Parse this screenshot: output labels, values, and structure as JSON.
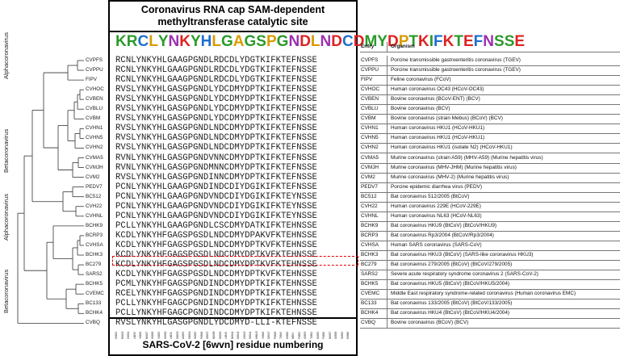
{
  "title": "Coronavirus RNA cap SAM-dependent methyltransferase catalytic site",
  "footer": "SARS-CoV-2 [6wvn] residue numbering",
  "logo": {
    "letters": [
      "K",
      "R",
      "C",
      "L",
      "Y",
      "N",
      "K",
      "Y",
      "H",
      "L",
      "G",
      "A",
      "G",
      "S",
      "P",
      "G",
      "N",
      "D",
      "L",
      "N",
      "D",
      "C",
      "D",
      "M",
      "Y",
      "D",
      "P",
      "T",
      "K",
      "I",
      "F",
      "K",
      "T",
      "E",
      "F",
      "N",
      "S",
      "S",
      "E"
    ],
    "colors": [
      "#2b9a2b",
      "#2b9a2b",
      "#1e6fd0",
      "#d99b00",
      "#2b9a2b",
      "#9b2fb0",
      "#d22",
      "#2b9a2b",
      "#1e6fd0",
      "#d99b00",
      "#2b9a2b",
      "#d99b00",
      "#2b9a2b",
      "#2b9a2b",
      "#d99b00",
      "#2b9a2b",
      "#9b2fb0",
      "#d22",
      "#d99b00",
      "#9b2fb0",
      "#d22",
      "#1e6fd0",
      "#d22",
      "#2b9a2b",
      "#2b9a2b",
      "#d22",
      "#d99b00",
      "#2b9a2b",
      "#d22",
      "#2b9a2b",
      "#1e6fd0",
      "#d22",
      "#2b9a2b",
      "#d22",
      "#1e6fd0",
      "#9b2fb0",
      "#2b9a2b",
      "#2b9a2b",
      "#d22"
    ]
  },
  "clades": [
    {
      "label": "Alphacoronavirus"
    },
    {
      "label": "Betacoronavirus"
    },
    {
      "label": "Alphacoronavirus"
    },
    {
      "label": "Betacoronavirus"
    }
  ],
  "entries_header": {
    "entry": "Entry",
    "organism": "Organism"
  },
  "rows": [
    {
      "leaf": "CVPFS",
      "seq": "RCNLYNKYHLGAAGPGNDLRDCDLYDGTKIFKTEFNSSE",
      "entry": "CVPFS",
      "organism": "Porcine transmissible gastroenteritis coronavirus  (TGEV)"
    },
    {
      "leaf": "CVPPU",
      "seq": "RCNLYNKYHLGAAGPGNDLRDCDLYDGTKIFKTEFNSSE",
      "entry": "CVPPU",
      "organism": "Porcine transmissible gastroenteritis coronavirus (TGEV)"
    },
    {
      "leaf": "FIPV",
      "seq": "RCNLYNKYHLGAAGPGNDLRDCDLYDGTKIFKTEFNSSE",
      "entry": "FIPV",
      "organism": "Feline coronavirus  (FCoV)"
    },
    {
      "leaf": "CVHOC",
      "seq": "RVSLYNKYHLGASGPGNDLYDCDMYDPTKIFKTEFNSSE",
      "entry": "CVHOC",
      "organism": "Human coronavirus OC43 (HCoV-OC43)"
    },
    {
      "leaf": "CVBEN",
      "seq": "RVSLYNKYHLGASGPGNDLYDCDMYDPTKIFKTEFNSSE",
      "entry": "CVBEN",
      "organism": "Bovine coronavirus (BCoV-ENT) (BCV)"
    },
    {
      "leaf": "CVBLU",
      "seq": "RVSLYNKYHLGASGPGNDLYDCDMYDPTKIFKTEFNSSE",
      "entry": "CVBLU",
      "organism": "Bovine coronavirus (BCV)"
    },
    {
      "leaf": "CVBM",
      "seq": "RVSLYNKYHLGASGPGNDLYDCDMYDPTKIFKTEFNSSE",
      "entry": "CVBM",
      "organism": "Bovine coronavirus (strain Mebus) (BCoV) (BCV)"
    },
    {
      "leaf": "CVHN1",
      "seq": "RVSLYNKYHLGASGPGNDLNDCDMYDPTKIFKTEFNSSE",
      "entry": "CVHN1",
      "organism": "Human coronavirus HKU1 (HCoV-HKU1)"
    },
    {
      "leaf": "CVHN5",
      "seq": "RVSLYNKYHLGASGPGNDLNDCDMYDPTKIFKTEFNSSE",
      "entry": "CVHN5",
      "organism": "Human coronavirus HKU1 (HCoV-HKU1)"
    },
    {
      "leaf": "CVHN2",
      "seq": "RVSLYNKYHLGASGPGNDLNDCDMYDPTKIFKTEFNSSE",
      "entry": "CVHN2",
      "organism": "Human coronavirus HKU1 (isolate N2) (HCoV-HKU1)"
    },
    {
      "leaf": "CVMA5",
      "seq": "RVNLYNKYHLGASGPGNDVNNCDMYDPTKIFKTEFNSSE",
      "entry": "CVMA5",
      "organism": "Murine coronavirus (strain A59) (MHV-A59) (Murine hepatitis virus)"
    },
    {
      "leaf": "CVMJH",
      "seq": "RVNLYNKYHLGASGPGNDMNNCDMYDPTKIFKTEFNSSE",
      "entry": "CVMJH",
      "organism": "Murine coronavirus (MHV-JHM) (Murine hepatitis virus)"
    },
    {
      "leaf": "CVM2",
      "seq": "RVSLYNKYHLGASGPGNDINNCDMYDPTKIFKTEFNSSE",
      "entry": "CVM2",
      "organism": "Murine coronavirus (MHV-2) (Murine hepatitis virus)"
    },
    {
      "leaf": "PEDV7",
      "seq": "PCNLYNKYHLGAAGPGNDINDCDIYDGIKIFKTEFNSSE",
      "entry": "PEDV7",
      "organism": "Porcine epidemic diarrhea virus (PEDV)"
    },
    {
      "leaf": "BC512",
      "seq": "PCNLYNKYHLGAAGPGNDVNDCDIYDGIKIFKTEYNSSE",
      "entry": "BC512",
      "organism": "Bat coronavirus 512/2005 (BtCoV)"
    },
    {
      "leaf": "CVH22",
      "seq": "PCNLYNKYHLGAAGPGNDVNDCDIYDGIKIFKTEYNSSE",
      "entry": "CVH22",
      "organism": "Human coronavirus 229E (HCoV-229E)"
    },
    {
      "leaf": "CVHNL",
      "seq": "PCNLYNKYHLGAAGPGNDVNDCDIYDGIKIFKTEYNSSE",
      "entry": "CVHNL",
      "organism": "Human coronavirus NL63 (HCoV-NL63)"
    },
    {
      "leaf": "BCHK9",
      "seq": "PCLLYNKYHLGAAGPGNDLCSCDMYDATKIFKTEHNSSE",
      "entry": "BCHK9",
      "organism": "Bat coronavirus HKU9 (BtCoV) (BtCoV/HKU9)"
    },
    {
      "leaf": "BCRP3",
      "seq": "KCDLYNKYHFGAGSPGSDLNDCDMYDPAKVFKTEHNSSE",
      "entry": "BCRP3",
      "organism": "Bat coronavirus Rp3/2004 (BtCoV/Rp3/2004)"
    },
    {
      "leaf": "CVHSA",
      "seq": "KCDLYNKYHFGAGSPGSDLNDCDMYDPTKVFKTEHNSSE",
      "entry": "CVHSA",
      "organism": "Human SARS coronavirus (SARS-CoV)"
    },
    {
      "leaf": "BCHK3",
      "seq": "KCDLYNKYHFGAGSPGSDLNDCDMYDPTKVFKTEHNSSE",
      "entry": "BCHK3",
      "organism": "Bat coronavirus HKU3 (BtCoV) (SARS-like coronavirus HKU3)"
    },
    {
      "leaf": "BC279",
      "seq": "KCDLYNKYHFGAGSPGSDLNDCDMYDPTKVFKTEHNSSE",
      "entry": "BC279",
      "organism": "Bat coronavirus 279/2005 (BtCoV) (BtCoV/279/2005)"
    },
    {
      "leaf": "SARS2",
      "seq": "KCDLYNKYHFGAGSPGSDLNDCDMYDPTKVFKTEHNSSE",
      "entry": "SARS2",
      "organism": "Severe acute respiratory syndrome coronavirus 2 (SARS-CoV-2)"
    },
    {
      "leaf": "BCHK5",
      "seq": "PCMLYNKYHFGAGSPGNDINDCDMYDPTKIFKTEHNSSE",
      "entry": "BCHK5",
      "organism": "Bat coronavirus HKU5 (BtCoV) (BtCoV/HKU5/2004)"
    },
    {
      "leaf": "CVEMC",
      "seq": "RCELYNKYHFGAGSPGNDINDCDMYDPTKIFKTEHNSSE",
      "entry": "CVEMC",
      "organism": "Middle East respiratory syndrome-related coronavirus (Human coronavirus EMC)"
    },
    {
      "leaf": "BC133",
      "seq": "PCLLYNKYHFGAGCPGNDINDCDMYDPTKIFKTEHNSSE",
      "entry": "BC133",
      "organism": "Bat coronavirus 133/2005 (BtCoV) (BtCoV/133/2005)"
    },
    {
      "leaf": "BCHK4",
      "seq": "PCLLYNKYHFGAGCPGNDINDCDMYDPTKIFKTEHNSSE",
      "entry": "BCHK4",
      "organism": "Bat coronavirus HKU4 (BtCoV) (BtCoV/HKU4/2004)"
    },
    {
      "leaf": "CVBQ",
      "seq": "RVSLYNKYHLGASGPGNDLYDCDMYD-LLI-KTEFNSSE",
      "entry": "CVBQ",
      "organism": "Bovine coronavirus (BCoV) (BCV)"
    }
  ],
  "residue_numbers": [
    "K6822",
    "R6823",
    "C6824",
    "L6825",
    "Y6826",
    "N6827",
    "K6828",
    "Y6829",
    "H6830",
    "L6831",
    "G6832",
    "A6833",
    "G6834",
    "S6835",
    "P6836",
    "G6837",
    "N6838",
    "D6839",
    "L6840",
    "N6841",
    "D6842",
    "C6843",
    "D6844",
    "M6845",
    "Y6846",
    "D6847",
    "P6848",
    "T6849",
    "K6850",
    "I6851",
    "F6852",
    "K6853",
    "T6854",
    "E6855",
    "F6856",
    "N6857",
    "S6858",
    "S6859",
    "E6860"
  ]
}
